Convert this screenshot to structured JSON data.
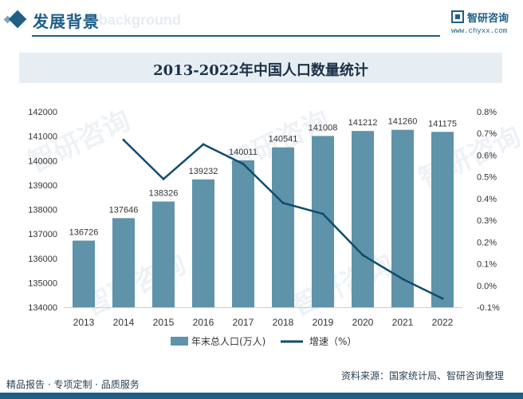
{
  "header": {
    "title": "发展背景",
    "title_en": "ent background",
    "logo_name": "智研咨询",
    "logo_url": "www.chyxx.com"
  },
  "chart_title": "2013-2022年中国人口数量统计",
  "footer": {
    "left_text": "精品报告 · 专项定制 · 品质服务",
    "right_text": "资料来源：国家统计局、智研咨询整理"
  },
  "watermark": "智研咨询",
  "colors": {
    "bar": "#5f93aa",
    "line": "#0e4d6e",
    "brand": "#1f5f86"
  },
  "chart_data": {
    "type": "bar+line",
    "title": "2013-2022年中国人口数量统计",
    "categories": [
      "2013",
      "2014",
      "2015",
      "2016",
      "2017",
      "2018",
      "2019",
      "2020",
      "2021",
      "2022"
    ],
    "series": [
      {
        "name": "年末总人口(万人)",
        "type": "bar",
        "axis": "left",
        "values": [
          136726,
          137646,
          138326,
          139232,
          140011,
          140541,
          141008,
          141212,
          141260,
          141175
        ]
      },
      {
        "name": "增速（%）",
        "type": "line",
        "axis": "right",
        "values": [
          null,
          0.67,
          0.49,
          0.65,
          0.56,
          0.38,
          0.33,
          0.14,
          0.03,
          -0.06
        ]
      }
    ],
    "y_left": {
      "min": 134000,
      "max": 142000,
      "ticks": [
        134000,
        135000,
        136000,
        137000,
        138000,
        139000,
        140000,
        141000,
        142000
      ]
    },
    "y_right": {
      "min": -0.1,
      "max": 0.8,
      "ticks": [
        "-0.1%",
        "0.0%",
        "0.1%",
        "0.2%",
        "0.3%",
        "0.4%",
        "0.5%",
        "0.6%",
        "0.7%",
        "0.8%"
      ]
    },
    "legend_position": "bottom-center",
    "grid": false
  }
}
